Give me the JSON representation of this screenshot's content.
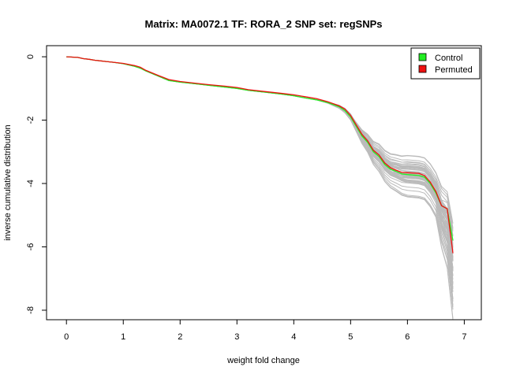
{
  "chart_data": {
    "type": "line",
    "title": "Matrix: MA0072.1 TF: RORA_2 SNP set: regSNPs",
    "xlabel": "weight fold change",
    "ylabel": "inverse cumulative distribution",
    "xlim": [
      -0.35,
      7.3
    ],
    "ylim": [
      -8.3,
      0.35
    ],
    "xticks": [
      0,
      1,
      2,
      3,
      4,
      5,
      6,
      7
    ],
    "yticks": [
      0,
      -2,
      -4,
      -6,
      -8
    ],
    "grid": false,
    "legend_position": "top-right",
    "legend": [
      {
        "name": "Control",
        "color": "#22ee22"
      },
      {
        "name": "Permuted",
        "color": "#ee1111"
      }
    ],
    "background_color": "#bbbbbb",
    "series": [
      {
        "name": "Control",
        "color": "#22ee22",
        "x": [
          0.0,
          0.2,
          0.3,
          0.4,
          0.5,
          0.6,
          0.7,
          0.8,
          1.0,
          1.2,
          1.3,
          1.4,
          1.6,
          1.8,
          2.0,
          2.2,
          2.5,
          2.8,
          3.0,
          3.2,
          3.5,
          3.8,
          4.0,
          4.2,
          4.4,
          4.6,
          4.8,
          4.9,
          5.0,
          5.1,
          5.2,
          5.3,
          5.4,
          5.5,
          5.6,
          5.7,
          5.8,
          5.9,
          6.0,
          6.2,
          6.3,
          6.4,
          6.5,
          6.6,
          6.7,
          6.8
        ],
        "y": [
          0.0,
          -0.02,
          -0.06,
          -0.08,
          -0.11,
          -0.13,
          -0.15,
          -0.17,
          -0.22,
          -0.3,
          -0.36,
          -0.45,
          -0.6,
          -0.75,
          -0.8,
          -0.84,
          -0.9,
          -0.96,
          -1.0,
          -1.06,
          -1.12,
          -1.18,
          -1.23,
          -1.3,
          -1.36,
          -1.45,
          -1.58,
          -1.7,
          -1.9,
          -2.2,
          -2.5,
          -2.7,
          -3.0,
          -3.15,
          -3.4,
          -3.55,
          -3.62,
          -3.7,
          -3.72,
          -3.75,
          -3.8,
          -4.0,
          -4.3,
          -4.7,
          -4.8,
          -5.8
        ]
      },
      {
        "name": "Permuted",
        "color": "#ee1111",
        "x": [
          0.0,
          0.2,
          0.3,
          0.4,
          0.5,
          0.6,
          0.7,
          0.8,
          1.0,
          1.2,
          1.3,
          1.4,
          1.6,
          1.8,
          2.0,
          2.2,
          2.5,
          2.8,
          3.0,
          3.2,
          3.5,
          3.8,
          4.0,
          4.2,
          4.4,
          4.6,
          4.8,
          4.9,
          5.0,
          5.1,
          5.2,
          5.3,
          5.4,
          5.5,
          5.6,
          5.7,
          5.8,
          5.9,
          6.0,
          6.2,
          6.3,
          6.4,
          6.5,
          6.6,
          6.7,
          6.8
        ],
        "y": [
          0.0,
          -0.02,
          -0.06,
          -0.08,
          -0.11,
          -0.13,
          -0.15,
          -0.17,
          -0.21,
          -0.28,
          -0.33,
          -0.43,
          -0.58,
          -0.72,
          -0.78,
          -0.82,
          -0.88,
          -0.93,
          -0.97,
          -1.04,
          -1.1,
          -1.16,
          -1.2,
          -1.26,
          -1.32,
          -1.42,
          -1.55,
          -1.65,
          -1.85,
          -2.15,
          -2.45,
          -2.65,
          -2.95,
          -3.1,
          -3.35,
          -3.5,
          -3.58,
          -3.65,
          -3.66,
          -3.68,
          -3.75,
          -3.95,
          -4.25,
          -4.7,
          -4.8,
          -6.2
        ]
      }
    ]
  }
}
